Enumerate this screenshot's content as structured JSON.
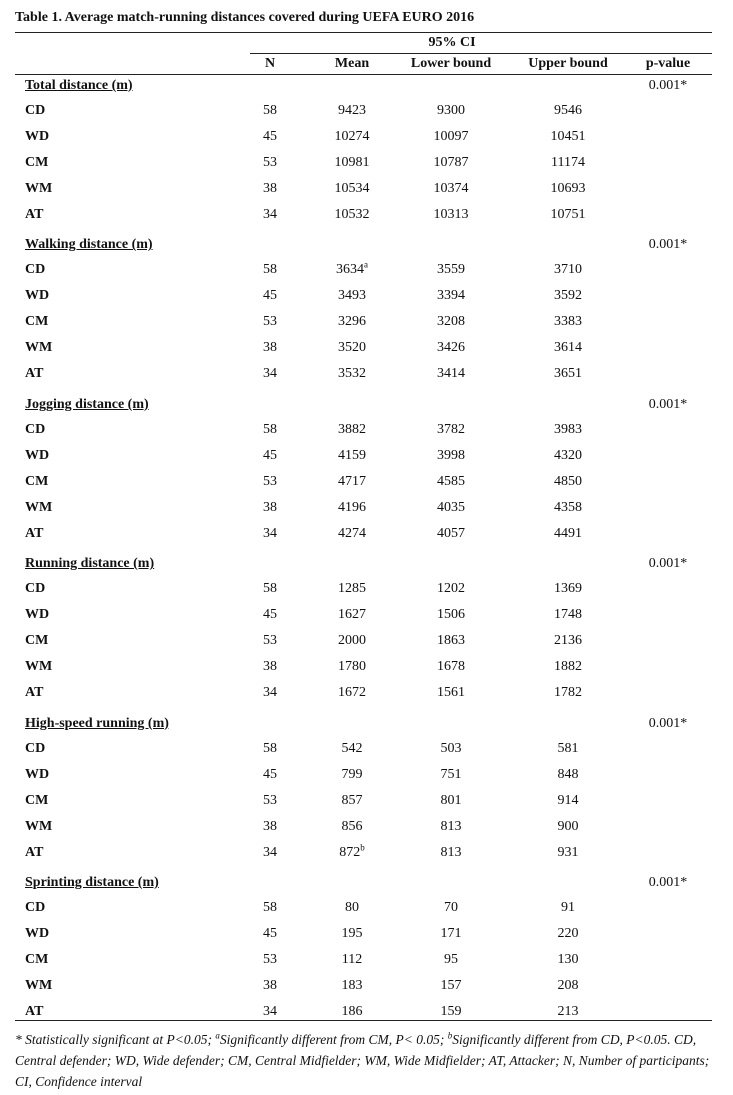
{
  "title": "Table 1. Average match-running distances covered during UEFA EURO 2016",
  "header": {
    "ci": "95% CI",
    "columns": [
      "N",
      "Mean",
      "Lower bound",
      "Upper bound",
      "p-value"
    ]
  },
  "groups": [
    {
      "title": "Total distance (m)",
      "p_value": "0.001*",
      "rows": [
        {
          "position": "CD",
          "n": 58,
          "mean": 9423,
          "lower": 9300,
          "upper": 9546
        },
        {
          "position": "WD",
          "n": 45,
          "mean": 10274,
          "lower": 10097,
          "upper": 10451
        },
        {
          "position": "CM",
          "n": 53,
          "mean": 10981,
          "lower": 10787,
          "upper": 11174
        },
        {
          "position": "WM",
          "n": 38,
          "mean": 10534,
          "lower": 10374,
          "upper": 10693
        },
        {
          "position": "AT",
          "n": 34,
          "mean": 10532,
          "lower": 10313,
          "upper": 10751
        }
      ]
    },
    {
      "title": "Walking distance (m)",
      "p_value": "0.001*",
      "rows": [
        {
          "position": "CD",
          "n": 58,
          "mean": 3634,
          "mean_note": "a",
          "lower": 3559,
          "upper": 3710
        },
        {
          "position": "WD",
          "n": 45,
          "mean": 3493,
          "lower": 3394,
          "upper": 3592
        },
        {
          "position": "CM",
          "n": 53,
          "mean": 3296,
          "lower": 3208,
          "upper": 3383
        },
        {
          "position": "WM",
          "n": 38,
          "mean": 3520,
          "lower": 3426,
          "upper": 3614
        },
        {
          "position": "AT",
          "n": 34,
          "mean": 3532,
          "lower": 3414,
          "upper": 3651
        }
      ]
    },
    {
      "title": "Jogging distance (m)",
      "p_value": "0.001*",
      "rows": [
        {
          "position": "CD",
          "n": 58,
          "mean": 3882,
          "lower": 3782,
          "upper": 3983
        },
        {
          "position": "WD",
          "n": 45,
          "mean": 4159,
          "lower": 3998,
          "upper": 4320
        },
        {
          "position": "CM",
          "n": 53,
          "mean": 4717,
          "lower": 4585,
          "upper": 4850
        },
        {
          "position": "WM",
          "n": 38,
          "mean": 4196,
          "lower": 4035,
          "upper": 4358
        },
        {
          "position": "AT",
          "n": 34,
          "mean": 4274,
          "lower": 4057,
          "upper": 4491
        }
      ]
    },
    {
      "title": "Running distance (m)",
      "p_value": "0.001*",
      "rows": [
        {
          "position": "CD",
          "n": 58,
          "mean": 1285,
          "lower": 1202,
          "upper": 1369
        },
        {
          "position": "WD",
          "n": 45,
          "mean": 1627,
          "lower": 1506,
          "upper": 1748
        },
        {
          "position": "CM",
          "n": 53,
          "mean": 2000,
          "lower": 1863,
          "upper": 2136
        },
        {
          "position": "WM",
          "n": 38,
          "mean": 1780,
          "lower": 1678,
          "upper": 1882
        },
        {
          "position": "AT",
          "n": 34,
          "mean": 1672,
          "lower": 1561,
          "upper": 1782
        }
      ]
    },
    {
      "title": "High-speed running (m)",
      "p_value": "0.001*",
      "rows": [
        {
          "position": "CD",
          "n": 58,
          "mean": 542,
          "lower": 503,
          "upper": 581
        },
        {
          "position": "WD",
          "n": 45,
          "mean": 799,
          "lower": 751,
          "upper": 848
        },
        {
          "position": "CM",
          "n": 53,
          "mean": 857,
          "lower": 801,
          "upper": 914
        },
        {
          "position": "WM",
          "n": 38,
          "mean": 856,
          "lower": 813,
          "upper": 900
        },
        {
          "position": "AT",
          "n": 34,
          "mean": 872,
          "mean_note": "b",
          "lower": 813,
          "upper": 931
        }
      ]
    },
    {
      "title": "Sprinting distance (m)",
      "p_value": "0.001*",
      "rows": [
        {
          "position": "CD",
          "n": 58,
          "mean": 80,
          "lower": 70,
          "upper": 91
        },
        {
          "position": "WD",
          "n": 45,
          "mean": 195,
          "lower": 171,
          "upper": 220
        },
        {
          "position": "CM",
          "n": 53,
          "mean": 112,
          "lower": 95,
          "upper": 130
        },
        {
          "position": "WM",
          "n": 38,
          "mean": 183,
          "lower": 157,
          "upper": 208
        },
        {
          "position": "AT",
          "n": 34,
          "mean": 186,
          "lower": 159,
          "upper": 213
        }
      ]
    }
  ],
  "footnote": [
    {
      "text": "* Statistically significant at P<0.05; "
    },
    {
      "text": "a",
      "sup": true
    },
    {
      "text": "Significantly different from CM, P< 0.05; "
    },
    {
      "text": "b",
      "sup": true
    },
    {
      "text": "Significantly different from CD, P<0.05. CD, Central defender; WD, Wide defender; CM, Central Midfielder; WM, Wide Midfielder; AT, Attacker; N, Number of participants; CI, Confidence interval"
    }
  ]
}
